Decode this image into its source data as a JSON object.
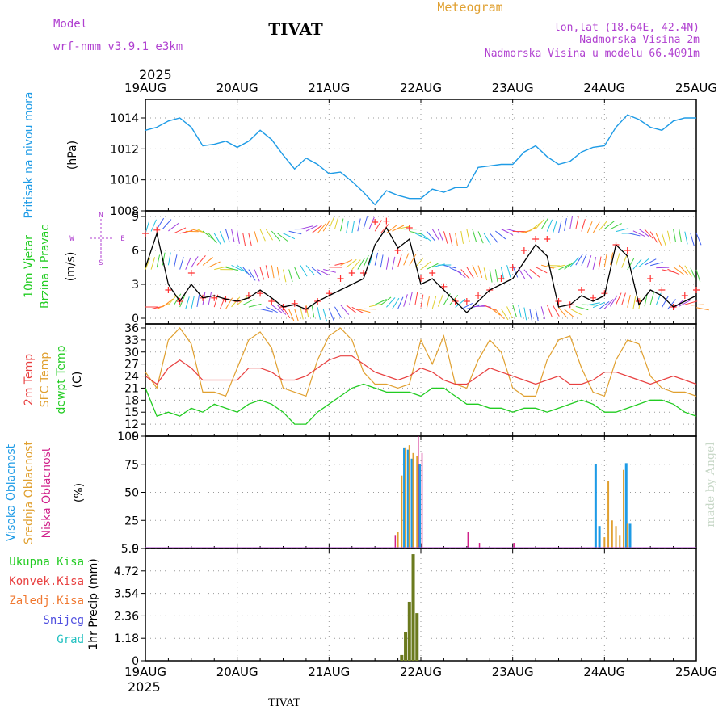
{
  "header": {
    "model_label": "Model",
    "model_name": "wrf-nmm_v3.9.1  e3km",
    "station": "TIVAT",
    "title": "Meteogram",
    "coords": "lon,lat (18.64E, 42.4N)",
    "elevation": "Nadmorska Visina 2m",
    "model_elevation": "Nadmorska Visina u modelu 66.4091m",
    "year": "2025",
    "footer_station": "TIVAT",
    "watermark": "made by Angel"
  },
  "colors": {
    "pressure": "#1e9be6",
    "wind_label": "#22cc22",
    "temp2m": "#e84040",
    "sfc": "#e0a030",
    "dewpt": "#22cc22",
    "cloud_high": "#1e9be6",
    "cloud_mid": "#e0a030",
    "cloud_low": "#d0208a",
    "precip": "#6b7a1e",
    "violet": "#b040d0"
  },
  "time_axis": [
    "19AUG",
    "20AUG",
    "21AUG",
    "22AUG",
    "23AUG",
    "24AUG",
    "25AUG"
  ],
  "panels": {
    "pressure": {
      "label": "Pritisak na nivou mora",
      "unit": "(hPa)"
    },
    "wind": {
      "label1": "10m Vjetar",
      "label2": "Brzina i Pravac",
      "unit": "(m/s)",
      "compass": {
        "n": "N",
        "s": "S",
        "e": "E",
        "w": "W"
      }
    },
    "temp": {
      "label1": "2m Temp",
      "label2": "SFC Temp",
      "label3": "dewpt Temp",
      "unit": "(C)"
    },
    "cloud": {
      "label1": "Visoka Oblacnost",
      "label2": "Srednja Oblacnost",
      "label3": "Niska Oblacnost",
      "unit": "(%)"
    },
    "precip": {
      "unit": "1hr Precip (mm)",
      "legend": [
        "Ukupna Kisa",
        "Konvek.Kisa",
        "Zaledj.Kisa",
        "Snijeg",
        "Grad"
      ]
    }
  },
  "chart_data": [
    {
      "id": "pressure",
      "type": "line",
      "title": "Pritisak na nivou mora",
      "ylabel": "(hPa)",
      "xlim": [
        0,
        144
      ],
      "ylim": [
        1008,
        1015.2
      ],
      "yticks": [
        1008,
        1010,
        1012,
        1014
      ],
      "x": [
        0,
        3,
        6,
        9,
        12,
        15,
        18,
        21,
        24,
        27,
        30,
        33,
        36,
        39,
        42,
        45,
        48,
        51,
        54,
        57,
        60,
        63,
        66,
        69,
        72,
        75,
        78,
        81,
        84,
        87,
        90,
        93,
        96,
        99,
        102,
        105,
        108,
        111,
        114,
        117,
        120,
        123,
        126,
        129,
        132,
        135,
        138,
        141,
        144
      ],
      "series": [
        {
          "name": "SLP",
          "values": [
            1013.2,
            1013.4,
            1013.8,
            1014.0,
            1013.4,
            1012.2,
            1012.3,
            1012.5,
            1012.1,
            1012.5,
            1013.2,
            1012.6,
            1011.6,
            1010.7,
            1011.4,
            1011.0,
            1010.4,
            1010.5,
            1009.9,
            1009.2,
            1008.4,
            1009.3,
            1009.0,
            1008.8,
            1008.8,
            1009.4,
            1009.2,
            1009.5,
            1009.5,
            1010.8,
            1010.9,
            1011.0,
            1011.0,
            1011.8,
            1012.2,
            1011.5,
            1011.0,
            1011.2,
            1011.8,
            1012.1,
            1012.2,
            1013.4,
            1014.2,
            1013.9,
            1013.4,
            1013.2,
            1013.8,
            1014.0,
            1014.0
          ]
        }
      ]
    },
    {
      "id": "wind",
      "type": "line",
      "title": "10m Vjetar Brzina i Pravac",
      "ylabel": "(m/s)",
      "xlim": [
        0,
        144
      ],
      "ylim": [
        -0.5,
        9.5
      ],
      "yticks": [
        0,
        3,
        6,
        9
      ],
      "x": [
        0,
        3,
        6,
        9,
        12,
        15,
        18,
        21,
        24,
        27,
        30,
        33,
        36,
        39,
        42,
        45,
        48,
        51,
        54,
        57,
        60,
        63,
        66,
        69,
        72,
        75,
        78,
        81,
        84,
        87,
        90,
        93,
        96,
        99,
        102,
        105,
        108,
        111,
        114,
        117,
        120,
        123,
        126,
        129,
        132,
        135,
        138,
        141,
        144
      ],
      "series": [
        {
          "name": "speed",
          "values": [
            4.5,
            7.5,
            3.0,
            1.5,
            3.0,
            1.8,
            2.0,
            1.7,
            1.5,
            1.8,
            2.5,
            1.8,
            1.0,
            1.2,
            0.8,
            1.5,
            2.0,
            2.5,
            3.0,
            3.5,
            6.5,
            8.0,
            6.2,
            7.0,
            3.0,
            3.5,
            2.5,
            1.5,
            0.5,
            1.5,
            2.5,
            3.0,
            3.5,
            5.0,
            6.5,
            5.5,
            1.0,
            1.2,
            2.0,
            1.5,
            2.0,
            6.5,
            5.5,
            1.2,
            2.5,
            2.0,
            1.0,
            1.5,
            2.0
          ]
        },
        {
          "name": "gust",
          "values": [
            7.5,
            7.8,
            2.5,
            1.5,
            4.0,
            1.8,
            1.8,
            1.7,
            1.5,
            2.0,
            2.2,
            1.5,
            1.0,
            1.3,
            0.8,
            1.5,
            2.2,
            3.5,
            4.0,
            4.0,
            8.5,
            8.6,
            6.0,
            8.0,
            3.5,
            4.0,
            2.8,
            1.5,
            1.5,
            2.0,
            2.5,
            3.5,
            4.5,
            6.0,
            7.0,
            7.0,
            1.5,
            1.2,
            2.5,
            1.8,
            2.2,
            6.5,
            6.0,
            1.5,
            3.5,
            2.5,
            1.0,
            2.0,
            2.5
          ]
        }
      ]
    },
    {
      "id": "temperature",
      "type": "line",
      "title": "Temperature",
      "ylabel": "(C)",
      "xlim": [
        0,
        144
      ],
      "ylim": [
        9,
        37
      ],
      "yticks": [
        9,
        12,
        15,
        18,
        21,
        24,
        27,
        30,
        33,
        36
      ],
      "x": [
        0,
        3,
        6,
        9,
        12,
        15,
        18,
        21,
        24,
        27,
        30,
        33,
        36,
        39,
        42,
        45,
        48,
        51,
        54,
        57,
        60,
        63,
        66,
        69,
        72,
        75,
        78,
        81,
        84,
        87,
        90,
        93,
        96,
        99,
        102,
        105,
        108,
        111,
        114,
        117,
        120,
        123,
        126,
        129,
        132,
        135,
        138,
        141,
        144
      ],
      "series": [
        {
          "name": "2m Temp",
          "values": [
            24,
            22,
            26,
            28,
            26,
            23,
            23,
            23,
            23,
            26,
            26,
            25,
            23,
            23,
            24,
            26,
            28,
            29,
            29,
            27,
            25,
            24,
            23,
            24,
            26,
            25,
            23,
            22,
            22,
            24,
            26,
            25,
            24,
            23,
            22,
            23,
            24,
            22,
            22,
            23,
            25,
            25,
            24,
            23,
            22,
            23,
            24,
            23,
            22
          ]
        },
        {
          "name": "SFC Temp",
          "values": [
            25,
            21,
            33,
            36,
            32,
            20,
            20,
            19,
            26,
            33,
            35,
            31,
            21,
            20,
            19,
            28,
            34,
            36,
            33,
            25,
            22,
            22,
            21,
            22,
            33,
            27,
            34,
            22,
            21,
            28,
            33,
            30,
            21,
            19,
            19,
            28,
            33,
            34,
            26,
            20,
            19,
            28,
            33,
            32,
            24,
            21,
            20,
            20,
            19
          ]
        },
        {
          "name": "dewpt Temp",
          "values": [
            21,
            14,
            15,
            14,
            16,
            15,
            17,
            16,
            15,
            17,
            18,
            17,
            15,
            12,
            12,
            15,
            17,
            19,
            21,
            22,
            21,
            20,
            20,
            20,
            19,
            21,
            21,
            19,
            17,
            17,
            16,
            16,
            15,
            16,
            16,
            15,
            16,
            17,
            18,
            17,
            15,
            15,
            16,
            17,
            18,
            18,
            17,
            15,
            14
          ]
        }
      ]
    },
    {
      "id": "cloud",
      "type": "bar",
      "title": "Oblacnost",
      "ylabel": "(%)",
      "xlim": [
        0,
        144
      ],
      "ylim": [
        0,
        100
      ],
      "yticks": [
        0,
        25,
        50,
        75,
        100
      ],
      "series": [
        {
          "name": "Visoka Oblacnost",
          "x": [
            68,
            69,
            70,
            72,
            118,
            119,
            126,
            127
          ],
          "values": [
            90,
            88,
            80,
            75,
            75,
            20,
            76,
            22
          ]
        },
        {
          "name": "Srednja Oblacnost",
          "x": [
            66,
            67,
            68,
            69,
            70,
            71,
            120,
            121,
            122,
            123,
            124,
            125,
            126
          ],
          "values": [
            15,
            65,
            90,
            92,
            85,
            82,
            10,
            60,
            25,
            20,
            12,
            70,
            22
          ]
        },
        {
          "name": "Niska Oblacnost",
          "x": [
            65,
            71,
            72,
            84,
            87,
            96
          ],
          "values": [
            12,
            100,
            85,
            15,
            5,
            5
          ]
        }
      ]
    },
    {
      "id": "precip",
      "type": "bar",
      "title": "1hr Precip",
      "ylabel": "1hr Precip (mm)",
      "xlim": [
        0,
        144
      ],
      "ylim": [
        0,
        5.9
      ],
      "yticks": [
        0,
        1.18,
        2.36,
        3.54,
        4.72,
        5.9
      ],
      "series": [
        {
          "name": "Ukupna Kisa",
          "x": [
            67,
            68,
            69,
            70,
            71
          ],
          "values": [
            0.3,
            1.5,
            3.1,
            5.6,
            2.5
          ]
        }
      ]
    }
  ]
}
